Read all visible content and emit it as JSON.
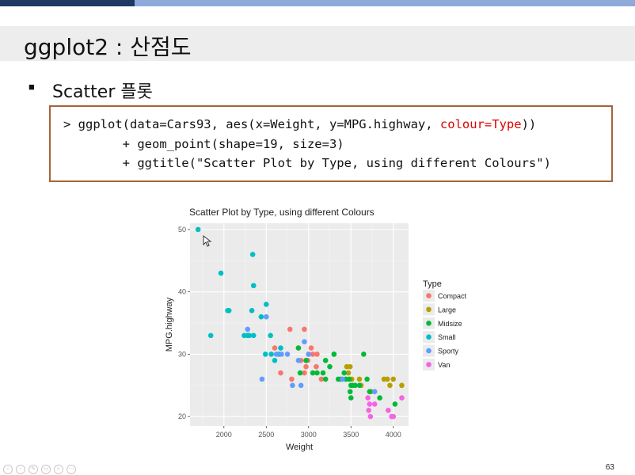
{
  "slide": {
    "title": "ggplot2 : 산점도",
    "bullet_text": "Scatter 플롯",
    "page_number": "63"
  },
  "code": {
    "line1_prefix": "> ggplot(data=Cars93, aes(x=Weight, y=MPG.highway, ",
    "line1_highlight": "colour=Type",
    "line1_suffix": "))",
    "line2": "        + geom_point(shape=19, size=3)",
    "line3": "        + ggtitle(\"Scatter Plot by Type, using different Colours\")"
  },
  "colors": {
    "accent_dark": "#1f3864",
    "accent_light": "#8eaadb",
    "code_border": "#a5643a",
    "highlight": "#e00000"
  },
  "chart_data": {
    "type": "scatter",
    "title": "Scatter Plot by Type, using different Colours",
    "xlabel": "Weight",
    "ylabel": "MPG.highway",
    "xlim": [
      1600,
      4180
    ],
    "ylim": [
      18.5,
      51
    ],
    "xticks": [
      2000,
      2500,
      3000,
      3500,
      4000
    ],
    "yticks": [
      20,
      30,
      40,
      50
    ],
    "grid": true,
    "legend_title": "Type",
    "legend_position": "right",
    "series": [
      {
        "name": "Compact",
        "color": "#f8766d",
        "points": [
          [
            2600,
            31
          ],
          [
            2670,
            27
          ],
          [
            2780,
            34
          ],
          [
            2800,
            26
          ],
          [
            2880,
            31
          ],
          [
            2950,
            34
          ],
          [
            2950,
            27
          ],
          [
            2970,
            28
          ],
          [
            2990,
            29
          ],
          [
            3030,
            31
          ],
          [
            3050,
            30
          ],
          [
            3090,
            28
          ],
          [
            2910,
            29
          ],
          [
            3100,
            30
          ],
          [
            3150,
            26
          ],
          [
            3000,
            30
          ]
        ]
      },
      {
        "name": "Large",
        "color": "#b79f00",
        "points": [
          [
            3450,
            28
          ],
          [
            3470,
            27
          ],
          [
            3490,
            28
          ],
          [
            3510,
            26
          ],
          [
            3620,
            25
          ],
          [
            3600,
            26
          ],
          [
            3890,
            26
          ],
          [
            3930,
            26
          ],
          [
            4000,
            26
          ],
          [
            4100,
            25
          ],
          [
            3740,
            24
          ],
          [
            3960,
            25
          ]
        ]
      },
      {
        "name": "Midsize",
        "color": "#00ba38",
        "points": [
          [
            2880,
            31
          ],
          [
            2900,
            27
          ],
          [
            3050,
            27
          ],
          [
            3100,
            27
          ],
          [
            3200,
            29
          ],
          [
            3250,
            28
          ],
          [
            3300,
            30
          ],
          [
            3380,
            26
          ],
          [
            3420,
            27
          ],
          [
            3440,
            26
          ],
          [
            3490,
            24
          ],
          [
            3500,
            25
          ],
          [
            3520,
            25
          ],
          [
            3550,
            25
          ],
          [
            3600,
            25
          ],
          [
            3650,
            30
          ],
          [
            3690,
            26
          ],
          [
            3720,
            24
          ],
          [
            3840,
            23
          ],
          [
            4020,
            22
          ],
          [
            3500,
            23
          ],
          [
            3350,
            26
          ],
          [
            3200,
            26
          ],
          [
            3480,
            26
          ],
          [
            2970,
            29
          ],
          [
            3170,
            27
          ],
          [
            3300,
            30
          ]
        ]
      },
      {
        "name": "Small",
        "color": "#00bfc4",
        "points": [
          [
            1695,
            50
          ],
          [
            1845,
            33
          ],
          [
            1965,
            43
          ],
          [
            2045,
            37
          ],
          [
            2060,
            37
          ],
          [
            2240,
            33
          ],
          [
            2280,
            33
          ],
          [
            2300,
            33
          ],
          [
            2330,
            37
          ],
          [
            2350,
            33
          ],
          [
            2340,
            46
          ],
          [
            2350,
            41
          ],
          [
            2440,
            36
          ],
          [
            2500,
            38
          ],
          [
            2550,
            33
          ],
          [
            2560,
            30
          ],
          [
            2600,
            29
          ],
          [
            2650,
            30
          ],
          [
            2670,
            31
          ],
          [
            2490,
            30
          ]
        ]
      },
      {
        "name": "Sporty",
        "color": "#619cff",
        "points": [
          [
            2280,
            34
          ],
          [
            2450,
            26
          ],
          [
            2500,
            36
          ],
          [
            2680,
            30
          ],
          [
            2750,
            30
          ],
          [
            2810,
            25
          ],
          [
            2880,
            29
          ],
          [
            2910,
            25
          ],
          [
            2950,
            32
          ],
          [
            3000,
            30
          ],
          [
            3400,
            26
          ],
          [
            3780,
            24
          ],
          [
            2620,
            30
          ]
        ]
      },
      {
        "name": "Van",
        "color": "#f564e3",
        "points": [
          [
            3700,
            23
          ],
          [
            3710,
            21
          ],
          [
            3730,
            20
          ],
          [
            3780,
            22
          ],
          [
            3940,
            21
          ],
          [
            4000,
            20
          ],
          [
            4100,
            23
          ],
          [
            3720,
            22
          ],
          [
            3980,
            20
          ]
        ]
      }
    ]
  }
}
